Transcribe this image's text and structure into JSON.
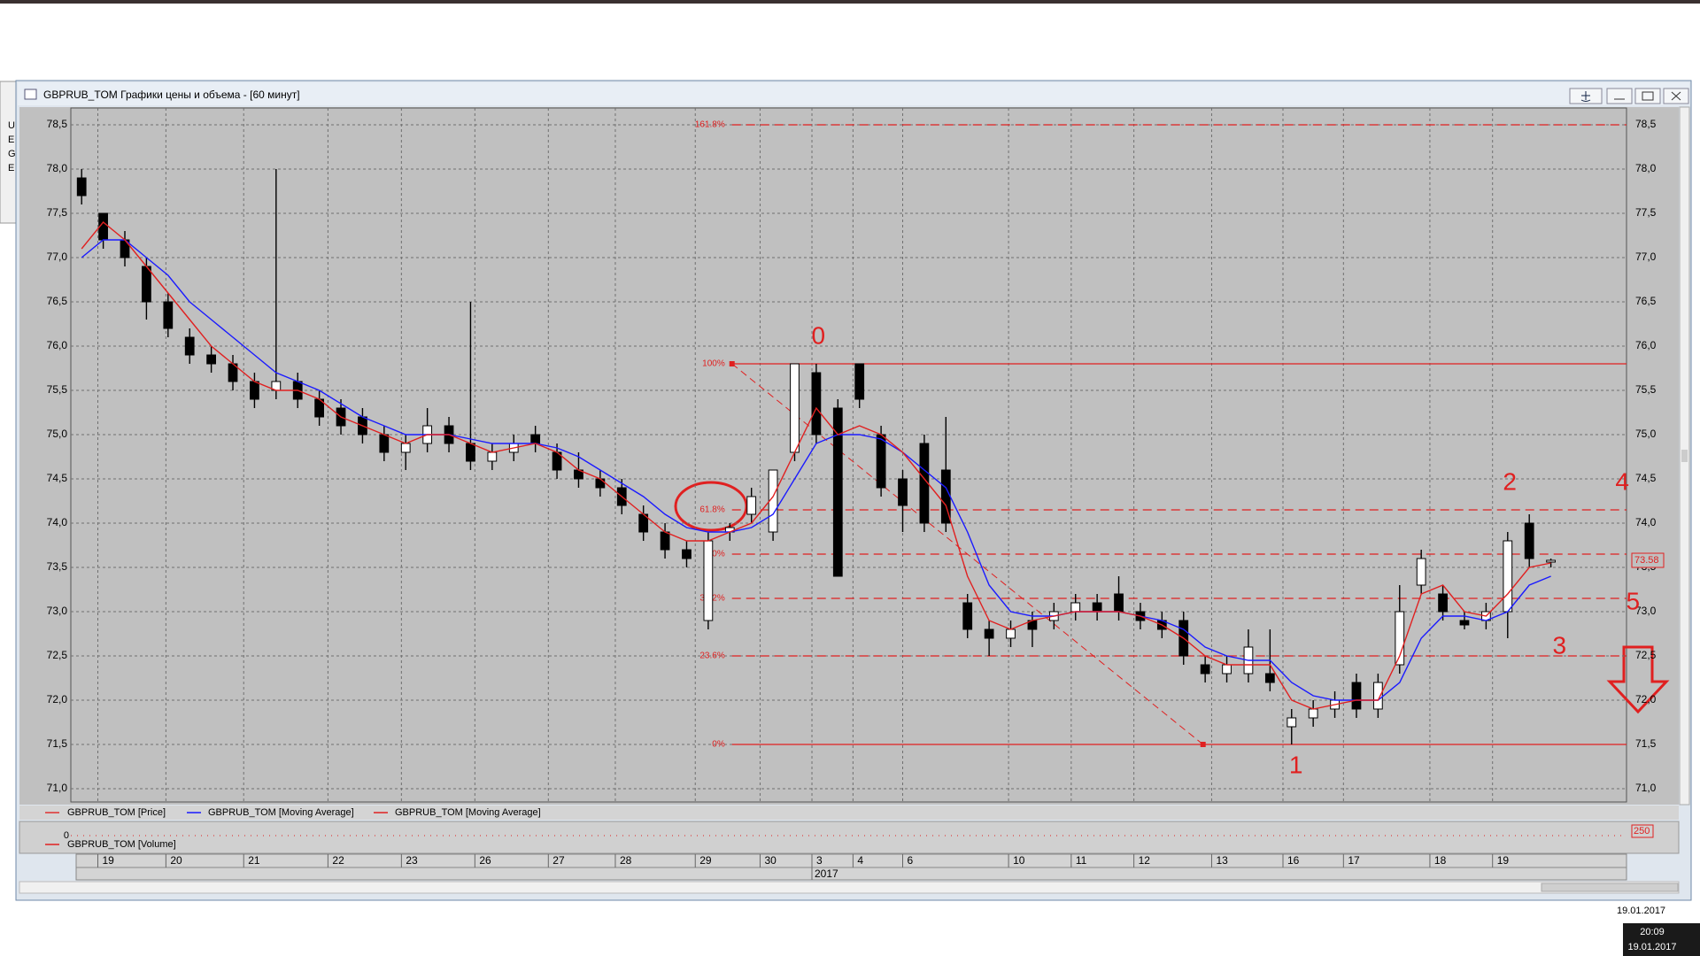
{
  "desktop": {
    "fragments": [
      "U",
      "E",
      "G",
      "E"
    ]
  },
  "window": {
    "title": "GBPRUB_TOM Графики цены и объема - [60 минут]"
  },
  "taskbar": {
    "date_top": "19.01.2017",
    "clock_time": "20:09",
    "clock_date": "19.01.2017"
  },
  "chart_data": {
    "type": "candlestick",
    "price_name": "GBPRUB_TOM [Price]",
    "price_color": "#e03030",
    "up_color": "#ffffff",
    "down_color": "#000000",
    "open": [
      77.9,
      77.5,
      77.2,
      76.9,
      76.5,
      76.1,
      75.9,
      75.8,
      75.6,
      75.5,
      75.6,
      75.4,
      75.3,
      75.2,
      75.0,
      74.8,
      74.9,
      75.1,
      74.9,
      74.7,
      74.8,
      75.0,
      74.8,
      74.6,
      74.5,
      74.4,
      74.1,
      73.9,
      73.7,
      72.9,
      73.9,
      74.1,
      73.9,
      74.8,
      75.7,
      75.3,
      75.8,
      75.0,
      74.5,
      74.9,
      74.6,
      73.1,
      72.8,
      72.7,
      72.9,
      72.9,
      73.0,
      73.1,
      73.2,
      73.0,
      72.9,
      72.9,
      72.4,
      72.3,
      72.3,
      72.3,
      71.7,
      71.8,
      71.9,
      72.2,
      71.9,
      72.4,
      73.3,
      73.2,
      72.9,
      72.9,
      73.0,
      74.0,
      73.58
    ],
    "high": [
      78.0,
      77.5,
      77.3,
      77.0,
      76.6,
      76.2,
      76.0,
      75.9,
      75.7,
      78.0,
      75.7,
      75.5,
      75.4,
      75.3,
      75.1,
      75.0,
      75.3,
      75.2,
      76.5,
      74.9,
      75.0,
      75.1,
      74.9,
      74.8,
      74.6,
      74.5,
      74.2,
      74.0,
      73.8,
      73.9,
      74.0,
      74.4,
      74.6,
      75.8,
      75.8,
      75.4,
      75.8,
      75.1,
      74.6,
      75.0,
      75.2,
      73.2,
      72.9,
      72.9,
      73.0,
      73.1,
      73.2,
      73.2,
      73.4,
      73.1,
      73.0,
      73.0,
      72.5,
      72.5,
      72.8,
      72.8,
      71.9,
      72.0,
      72.1,
      72.3,
      72.3,
      73.3,
      73.7,
      73.3,
      73.0,
      73.1,
      73.9,
      74.1,
      73.6
    ],
    "low": [
      77.6,
      77.1,
      76.9,
      76.3,
      76.1,
      75.8,
      75.7,
      75.5,
      75.3,
      75.4,
      75.3,
      75.1,
      75.0,
      74.9,
      74.7,
      74.6,
      74.8,
      74.8,
      74.6,
      74.6,
      74.7,
      74.8,
      74.5,
      74.4,
      74.3,
      74.1,
      73.8,
      73.6,
      73.5,
      72.8,
      73.8,
      74.0,
      73.8,
      74.7,
      74.9,
      73.4,
      75.3,
      74.3,
      73.9,
      73.9,
      73.9,
      72.7,
      72.5,
      72.6,
      72.6,
      72.8,
      72.9,
      72.9,
      72.9,
      72.8,
      72.7,
      72.4,
      72.2,
      72.2,
      72.2,
      72.1,
      71.5,
      71.7,
      71.8,
      71.8,
      71.8,
      72.3,
      73.2,
      72.9,
      72.8,
      72.8,
      72.7,
      73.5,
      73.5
    ],
    "close": [
      77.7,
      77.2,
      77.0,
      76.5,
      76.2,
      75.9,
      75.8,
      75.6,
      75.4,
      75.6,
      75.4,
      75.2,
      75.1,
      75.0,
      74.8,
      74.9,
      75.1,
      74.9,
      74.7,
      74.8,
      74.9,
      74.9,
      74.6,
      74.5,
      74.4,
      74.2,
      73.9,
      73.7,
      73.6,
      73.8,
      73.95,
      74.3,
      74.6,
      75.8,
      75.0,
      73.4,
      75.4,
      74.4,
      74.2,
      74.0,
      74.0,
      72.8,
      72.7,
      72.8,
      72.8,
      73.0,
      73.1,
      73.0,
      73.0,
      72.9,
      72.8,
      72.5,
      72.3,
      72.4,
      72.6,
      72.2,
      71.8,
      71.9,
      72.0,
      71.9,
      72.2,
      73.0,
      73.6,
      73.0,
      72.85,
      73.0,
      73.8,
      73.6,
      73.58
    ],
    "series": [
      {
        "name": "GBPRUB_TOM [Moving Average]",
        "color": "#1a1aff",
        "values": [
          77.0,
          77.2,
          77.2,
          77.0,
          76.8,
          76.5,
          76.3,
          76.1,
          75.9,
          75.7,
          75.6,
          75.5,
          75.35,
          75.2,
          75.1,
          75.0,
          75.0,
          75.0,
          74.95,
          74.9,
          74.9,
          74.9,
          74.85,
          74.75,
          74.6,
          74.45,
          74.3,
          74.1,
          73.95,
          73.9,
          73.9,
          73.95,
          74.1,
          74.5,
          74.9,
          75.0,
          75.0,
          74.95,
          74.8,
          74.6,
          74.4,
          73.9,
          73.3,
          73.0,
          72.95,
          72.95,
          73.0,
          73.0,
          73.0,
          72.95,
          72.9,
          72.8,
          72.6,
          72.5,
          72.45,
          72.45,
          72.2,
          72.05,
          72.0,
          72.0,
          72.0,
          72.2,
          72.7,
          72.95,
          72.95,
          72.9,
          73.0,
          73.3,
          73.4
        ]
      },
      {
        "name": "GBPRUB_TOM [Moving Average]",
        "color": "#e02020",
        "values": [
          77.1,
          77.4,
          77.2,
          76.9,
          76.6,
          76.3,
          76.0,
          75.8,
          75.6,
          75.5,
          75.5,
          75.4,
          75.2,
          75.1,
          75.0,
          74.9,
          75.0,
          75.0,
          74.9,
          74.8,
          74.85,
          74.9,
          74.8,
          74.6,
          74.5,
          74.3,
          74.1,
          73.9,
          73.8,
          73.8,
          73.9,
          74.0,
          74.3,
          74.8,
          75.3,
          75.0,
          75.1,
          75.0,
          74.8,
          74.5,
          74.2,
          73.4,
          72.9,
          72.8,
          72.9,
          72.95,
          73.0,
          73.0,
          73.0,
          72.95,
          72.85,
          72.7,
          72.5,
          72.4,
          72.4,
          72.4,
          72.0,
          71.9,
          71.95,
          72.0,
          72.0,
          72.5,
          73.2,
          73.3,
          73.0,
          72.95,
          73.2,
          73.5,
          73.55
        ]
      }
    ],
    "xlim": [
      0,
      72
    ],
    "ylim": [
      70.85,
      78.69
    ],
    "yticks": [
      {
        "value": 71.0,
        "label": "71,0"
      },
      {
        "value": 71.5,
        "label": "71,5"
      },
      {
        "value": 72.0,
        "label": "72,0"
      },
      {
        "value": 72.5,
        "label": "72,5"
      },
      {
        "value": 73.0,
        "label": "73,0"
      },
      {
        "value": 73.5,
        "label": "73,5"
      },
      {
        "value": 74.0,
        "label": "74,0"
      },
      {
        "value": 74.5,
        "label": "74,5"
      },
      {
        "value": 75.0,
        "label": "75,0"
      },
      {
        "value": 75.5,
        "label": "75,5"
      },
      {
        "value": 76.0,
        "label": "76,0"
      },
      {
        "value": 76.5,
        "label": "76,5"
      },
      {
        "value": 77.0,
        "label": "77,0"
      },
      {
        "value": 77.5,
        "label": "77,5"
      },
      {
        "value": 78.0,
        "label": "78,0"
      },
      {
        "value": 78.5,
        "label": "78,5"
      }
    ],
    "xticks": [
      {
        "value": 1.25,
        "label": "19"
      },
      {
        "value": 4.4,
        "label": "20"
      },
      {
        "value": 8.0,
        "label": "21"
      },
      {
        "value": 11.9,
        "label": "22"
      },
      {
        "value": 15.3,
        "label": "23"
      },
      {
        "value": 18.7,
        "label": "26"
      },
      {
        "value": 22.1,
        "label": "27"
      },
      {
        "value": 25.2,
        "label": "28"
      },
      {
        "value": 28.9,
        "label": "29"
      },
      {
        "value": 31.9,
        "label": "30"
      },
      {
        "value": 34.3,
        "label": "3"
      },
      {
        "value": 36.2,
        "label": "4"
      },
      {
        "value": 38.5,
        "label": "6"
      },
      {
        "value": 43.4,
        "label": "10"
      },
      {
        "value": 46.3,
        "label": "11"
      },
      {
        "value": 49.2,
        "label": "12"
      },
      {
        "value": 52.8,
        "label": "13"
      },
      {
        "value": 56.1,
        "label": "16"
      },
      {
        "value": 58.9,
        "label": "17"
      },
      {
        "value": 62.9,
        "label": "18"
      },
      {
        "value": 65.8,
        "label": "19"
      }
    ],
    "year_ticks": [
      {
        "value": 34.3,
        "label": "2017"
      }
    ],
    "grid": true,
    "last_price": 73.58,
    "fib_start_x": 30.6,
    "fib_color": "#e02020",
    "fib_levels": [
      {
        "y": 78.5,
        "label": "161.8%",
        "style": "dashed"
      },
      {
        "y": 75.8,
        "label": "100%",
        "style": "solid"
      },
      {
        "y": 74.15,
        "label": "61.8%",
        "style": "dashed"
      },
      {
        "y": 73.65,
        "label": "50%",
        "style": "dashed"
      },
      {
        "y": 73.15,
        "label": "38.2%",
        "style": "dashed"
      },
      {
        "y": 72.5,
        "label": "23.6%",
        "style": "dashed"
      },
      {
        "y": 71.5,
        "label": "0%",
        "style": "solid"
      }
    ],
    "trend_line": {
      "x": [
        30.6,
        52.4
      ],
      "y": [
        75.8,
        71.5
      ]
    },
    "annotations": [
      {
        "text": "0",
        "x": 34.6,
        "y": 76.1
      },
      {
        "text": "1",
        "x": 56.7,
        "y": 71.25
      },
      {
        "text": "2",
        "x": 66.6,
        "y": 74.45
      },
      {
        "text": "3",
        "x": 68.9,
        "y": 72.6
      },
      {
        "text": "4",
        "x": 71.8,
        "y": 74.45
      },
      {
        "text": "5",
        "x": 72.3,
        "y": 73.1
      }
    ],
    "volume": {
      "name": "GBPRUB_TOM [Volume]",
      "color": "#e02020",
      "ylim": [
        0,
        250
      ],
      "yticks": [
        0,
        250
      ]
    }
  }
}
